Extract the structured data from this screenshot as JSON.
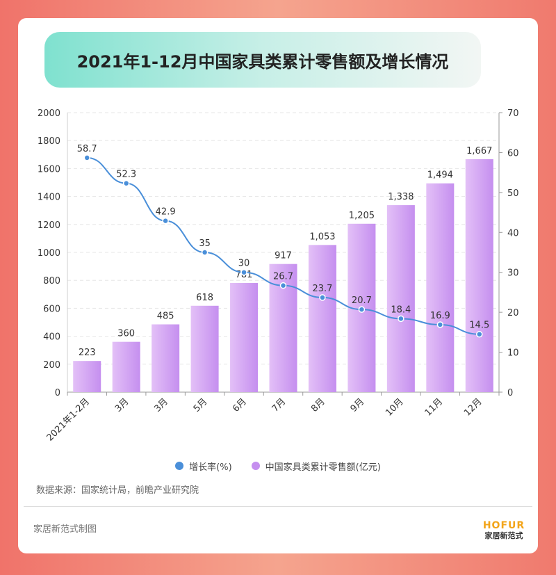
{
  "chart_data": {
    "type": "bar",
    "title": "2021年1-12月中国家具类累计零售额及增长情况",
    "categories": [
      "2021年1-2月",
      "3月",
      "3月",
      "5月",
      "6月",
      "7月",
      "8月",
      "9月",
      "10月",
      "11月",
      "12月"
    ],
    "series": [
      {
        "name": "中国家具类累计零售额(亿元)",
        "type": "bar",
        "axis": "left",
        "values": [
          223,
          360,
          485,
          618,
          781,
          917,
          1053,
          1205,
          1338,
          1494,
          1667
        ],
        "labels": [
          "223",
          "360",
          "485",
          "618",
          "781",
          "917",
          "1,053",
          "1,205",
          "1,338",
          "1,494",
          "1,667"
        ]
      },
      {
        "name": "增长率(%)",
        "type": "line",
        "axis": "right",
        "values": [
          58.7,
          52.3,
          42.9,
          35,
          30,
          26.7,
          23.7,
          20.7,
          18.4,
          16.9,
          14.5
        ],
        "labels": [
          "58.7",
          "52.3",
          "42.9",
          "35",
          "30",
          "26.7",
          "23.7",
          "20.7",
          "18.4",
          "16.9",
          "14.5"
        ]
      }
    ],
    "ylim_left": [
      0,
      2000
    ],
    "yticks_left": [
      "0",
      "200",
      "400",
      "600",
      "800",
      "1000",
      "1200",
      "1400",
      "1600",
      "1800",
      "2000"
    ],
    "ylim_right": [
      0,
      70
    ],
    "yticks_right": [
      "0",
      "10",
      "20",
      "30",
      "40",
      "50",
      "60",
      "70"
    ],
    "grid": true,
    "legend_position": "bottom"
  },
  "legend": {
    "line_label": "增长率(%)",
    "bar_label": "中国家具类累计零售额(亿元)"
  },
  "source_text": "数据来源：国家统计局，前瞻产业研究院",
  "footer_text": "家居新范式制图",
  "logo": {
    "en": "HOFUR",
    "cn": "家居新范式"
  },
  "colors": {
    "bar_light": "#e3c0f7",
    "bar_dark": "#c58fef",
    "line": "#4a8fd9",
    "point_fill": "#4a8fd9",
    "point_stroke": "#ffffff",
    "legend_bar": "#c58fef"
  }
}
